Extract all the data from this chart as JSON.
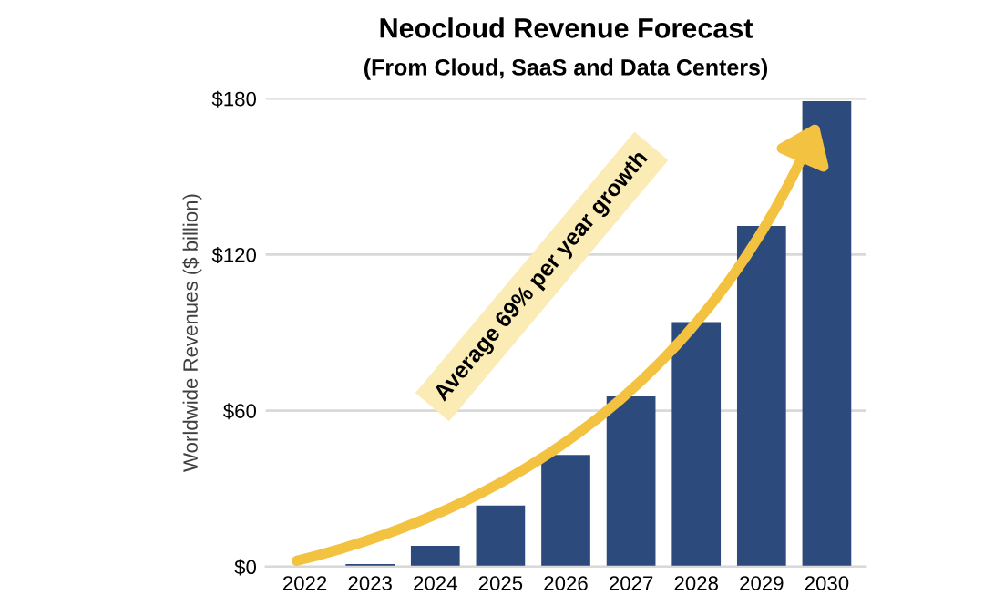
{
  "chart_data": {
    "type": "bar",
    "title": "Neocloud Revenue Forecast",
    "subtitle": "(From Cloud, SaaS and Data Centers)",
    "ylabel": "Worldwide Revenues ($ billion)",
    "categories": [
      "2022",
      "2023",
      "2024",
      "2025",
      "2026",
      "2027",
      "2028",
      "2029",
      "2030"
    ],
    "values": [
      null,
      1,
      8,
      23.5,
      43,
      65.5,
      94,
      131,
      179
    ],
    "color": "#2d4a7c",
    "ylim": [
      0,
      180
    ],
    "yticks": [
      {
        "value": 0,
        "label": "$0"
      },
      {
        "value": 60,
        "label": "$60"
      },
      {
        "value": 120,
        "label": "$120"
      },
      {
        "value": 180,
        "label": "$180"
      }
    ],
    "grid": "y",
    "annotations": [
      "Average 69% per year growth"
    ]
  }
}
